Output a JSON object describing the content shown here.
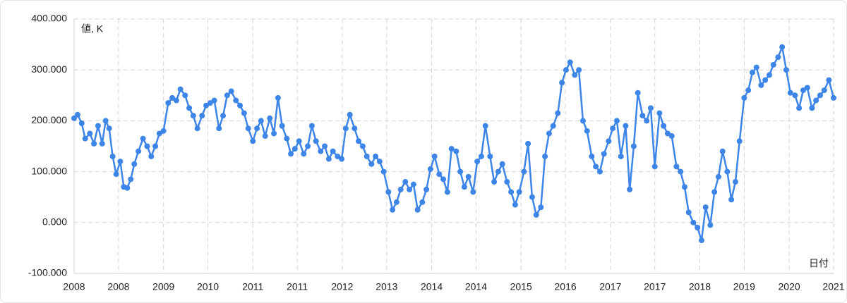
{
  "chart_data": {
    "type": "line",
    "ylabel": "値, K",
    "xlabel": "日付",
    "color": "#3d85e6",
    "grid": true,
    "xlim": [
      2008,
      2021
    ],
    "xticks": [
      2008,
      {
        "value": 2008.76,
        "label": "2008"
      },
      {
        "value": 2009.53,
        "label": "2009"
      },
      {
        "value": 2010.29,
        "label": "2010"
      },
      {
        "value": 2011.06,
        "label": "2011"
      },
      {
        "value": 2011.82,
        "label": "2011"
      },
      {
        "value": 2012.59,
        "label": "2012"
      },
      {
        "value": 2013.35,
        "label": "2013"
      },
      {
        "value": 2014.12,
        "label": "2014"
      },
      {
        "value": 2014.88,
        "label": "2014"
      },
      {
        "value": 2015.65,
        "label": "2015"
      },
      {
        "value": 2016.41,
        "label": "2016"
      },
      {
        "value": 2017.18,
        "label": "2017"
      },
      {
        "value": 2017.94,
        "label": "2017"
      },
      {
        "value": 2018.71,
        "label": "2018"
      },
      {
        "value": 2019.47,
        "label": "2019"
      },
      {
        "value": 2020.24,
        "label": "2020"
      },
      2021
    ],
    "ylim": [
      -100,
      400
    ],
    "yticks": [
      {
        "value": -100,
        "label": "-100.000"
      },
      {
        "value": 0,
        "label": "0.000"
      },
      {
        "value": 100,
        "label": "100.000"
      },
      {
        "value": 200,
        "label": "200.000"
      },
      {
        "value": 300,
        "label": "300.000"
      },
      {
        "value": 400,
        "label": "400.000"
      }
    ],
    "x": [
      2008.0,
      2008.06,
      2008.13,
      2008.19,
      2008.27,
      2008.34,
      2008.41,
      2008.48,
      2008.54,
      2008.6,
      2008.66,
      2008.72,
      2008.79,
      2008.85,
      2008.91,
      2008.97,
      2009.03,
      2009.1,
      2009.18,
      2009.25,
      2009.32,
      2009.39,
      2009.46,
      2009.53,
      2009.61,
      2009.68,
      2009.75,
      2009.82,
      2009.9,
      2009.97,
      2010.04,
      2010.11,
      2010.19,
      2010.26,
      2010.33,
      2010.4,
      2010.48,
      2010.55,
      2010.62,
      2010.69,
      2010.77,
      2010.84,
      2010.91,
      2010.98,
      2011.06,
      2011.13,
      2011.2,
      2011.27,
      2011.35,
      2011.42,
      2011.49,
      2011.56,
      2011.64,
      2011.71,
      2011.78,
      2011.85,
      2011.93,
      2012.0,
      2012.07,
      2012.14,
      2012.22,
      2012.29,
      2012.36,
      2012.43,
      2012.51,
      2012.58,
      2012.65,
      2012.72,
      2012.8,
      2012.87,
      2012.94,
      2013.01,
      2013.09,
      2013.16,
      2013.23,
      2013.3,
      2013.38,
      2013.45,
      2013.52,
      2013.59,
      2013.67,
      2013.74,
      2013.81,
      2013.88,
      2013.96,
      2014.03,
      2014.1,
      2014.17,
      2014.25,
      2014.32,
      2014.39,
      2014.46,
      2014.54,
      2014.61,
      2014.68,
      2014.75,
      2014.83,
      2014.9,
      2014.97,
      2015.04,
      2015.12,
      2015.19,
      2015.26,
      2015.33,
      2015.41,
      2015.48,
      2015.55,
      2015.62,
      2015.7,
      2015.77,
      2015.84,
      2015.91,
      2015.99,
      2016.06,
      2016.13,
      2016.2,
      2016.28,
      2016.35,
      2016.42,
      2016.49,
      2016.57,
      2016.64,
      2016.71,
      2016.78,
      2016.86,
      2016.93,
      2017.0,
      2017.07,
      2017.15,
      2017.22,
      2017.29,
      2017.36,
      2017.44,
      2017.51,
      2017.58,
      2017.65,
      2017.73,
      2017.8,
      2017.87,
      2017.94,
      2018.02,
      2018.09,
      2018.16,
      2018.23,
      2018.31,
      2018.38,
      2018.45,
      2018.52,
      2018.6,
      2018.67,
      2018.74,
      2018.81,
      2018.89,
      2018.96,
      2019.03,
      2019.1,
      2019.18,
      2019.25,
      2019.32,
      2019.39,
      2019.47,
      2019.54,
      2019.61,
      2019.68,
      2019.76,
      2019.83,
      2019.9,
      2019.97,
      2020.05,
      2020.12,
      2020.19,
      2020.26,
      2020.34,
      2020.41,
      2020.48,
      2020.55,
      2020.63,
      2020.7,
      2020.77,
      2020.84,
      2020.92,
      2021.0
    ],
    "values": [
      205,
      212,
      195,
      165,
      175,
      155,
      190,
      155,
      200,
      185,
      130,
      95,
      120,
      70,
      68,
      85,
      115,
      140,
      165,
      150,
      130,
      150,
      175,
      180,
      235,
      245,
      240,
      262,
      250,
      225,
      210,
      185,
      210,
      230,
      235,
      240,
      185,
      210,
      250,
      258,
      240,
      230,
      215,
      185,
      160,
      185,
      200,
      170,
      205,
      175,
      245,
      190,
      165,
      135,
      145,
      160,
      135,
      150,
      190,
      160,
      140,
      150,
      125,
      140,
      130,
      125,
      185,
      212,
      185,
      160,
      150,
      130,
      115,
      130,
      120,
      100,
      60,
      25,
      40,
      65,
      80,
      65,
      75,
      25,
      40,
      65,
      105,
      130,
      95,
      85,
      60,
      145,
      140,
      100,
      70,
      90,
      60,
      120,
      130,
      190,
      130,
      80,
      100,
      115,
      80,
      60,
      35,
      60,
      100,
      155,
      50,
      15,
      30,
      130,
      175,
      190,
      215,
      275,
      300,
      315,
      290,
      300,
      200,
      180,
      130,
      110,
      100,
      135,
      160,
      185,
      200,
      130,
      190,
      65,
      150,
      255,
      210,
      200,
      225,
      110,
      215,
      190,
      175,
      170,
      110,
      100,
      70,
      20,
      0,
      -10,
      -35,
      30,
      -5,
      60,
      90,
      140,
      100,
      45,
      80,
      160,
      245,
      260,
      295,
      305,
      270,
      280,
      290,
      310,
      325,
      345,
      300,
      255,
      250,
      225,
      260,
      265,
      225,
      240,
      250,
      260,
      280,
      245
    ]
  }
}
